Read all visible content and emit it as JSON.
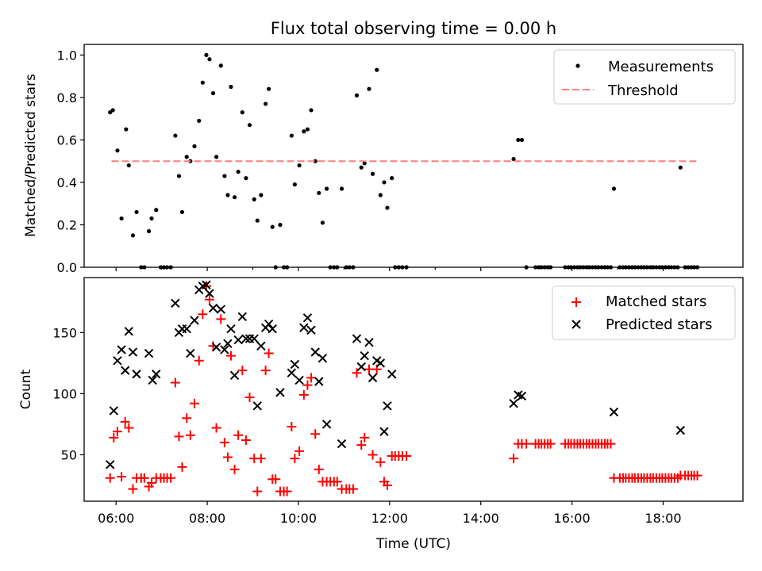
{
  "chart_data": {
    "type": "scatter",
    "title": "Flux total observing time = 0.00 h",
    "xlabel": "Time (UTC)",
    "x_ticks": [
      "06:00",
      "08:00",
      "10:00",
      "12:00",
      "14:00",
      "16:00",
      "18:00"
    ],
    "x_tick_hours": [
      6,
      8,
      10,
      12,
      14,
      16,
      18
    ],
    "xlim_hours": [
      5.3,
      19.75
    ],
    "colors": {
      "measurement": "#000000",
      "threshold": "#ff7f7f",
      "matched": "#ff0000",
      "predicted": "#000000"
    },
    "top": {
      "ylabel": "Matched/Predicted stars",
      "ylim": [
        0,
        1.05
      ],
      "y_ticks": [
        "0.0",
        "0.2",
        "0.4",
        "0.6",
        "0.8",
        "1.0"
      ],
      "legend": {
        "placement": "top-right",
        "measurements": "Measurements",
        "threshold": "Threshold"
      },
      "threshold": {
        "y": 0.5,
        "x_start": 5.9,
        "x_end": 18.75
      },
      "x_minor_ticks": [
        6,
        7,
        8,
        9,
        10,
        11,
        12,
        13,
        14,
        15,
        16,
        17,
        18
      ],
      "measurements": [
        [
          5.87,
          0.73
        ],
        [
          5.93,
          0.74
        ],
        [
          6.03,
          0.55
        ],
        [
          6.12,
          0.23
        ],
        [
          6.22,
          0.65
        ],
        [
          6.28,
          0.48
        ],
        [
          6.37,
          0.15
        ],
        [
          6.45,
          0.26
        ],
        [
          6.55,
          0.0
        ],
        [
          6.62,
          0.0
        ],
        [
          6.72,
          0.17
        ],
        [
          6.78,
          0.23
        ],
        [
          6.88,
          0.27
        ],
        [
          6.98,
          0.0
        ],
        [
          7.05,
          0.0
        ],
        [
          7.12,
          0.0
        ],
        [
          7.2,
          0.0
        ],
        [
          7.3,
          0.62
        ],
        [
          7.38,
          0.43
        ],
        [
          7.45,
          0.26
        ],
        [
          7.55,
          0.52
        ],
        [
          7.63,
          0.5
        ],
        [
          7.72,
          0.57
        ],
        [
          7.82,
          0.69
        ],
        [
          7.9,
          0.87
        ],
        [
          7.98,
          1.0
        ],
        [
          8.05,
          0.98
        ],
        [
          8.13,
          0.82
        ],
        [
          8.2,
          0.52
        ],
        [
          8.3,
          0.95
        ],
        [
          8.38,
          0.43
        ],
        [
          8.45,
          0.34
        ],
        [
          8.52,
          0.85
        ],
        [
          8.6,
          0.33
        ],
        [
          8.68,
          0.45
        ],
        [
          8.77,
          0.73
        ],
        [
          8.85,
          0.42
        ],
        [
          8.93,
          0.67
        ],
        [
          9.03,
          0.32
        ],
        [
          9.1,
          0.22
        ],
        [
          9.18,
          0.34
        ],
        [
          9.28,
          0.77
        ],
        [
          9.35,
          0.84
        ],
        [
          9.43,
          0.19
        ],
        [
          9.5,
          0.0
        ],
        [
          9.6,
          0.2
        ],
        [
          9.68,
          0.0
        ],
        [
          9.75,
          0.0
        ],
        [
          9.85,
          0.62
        ],
        [
          9.92,
          0.39
        ],
        [
          10.02,
          0.48
        ],
        [
          10.12,
          0.64
        ],
        [
          10.2,
          0.65
        ],
        [
          10.28,
          0.74
        ],
        [
          10.37,
          0.5
        ],
        [
          10.45,
          0.35
        ],
        [
          10.53,
          0.21
        ],
        [
          10.62,
          0.37
        ],
        [
          10.7,
          0.0
        ],
        [
          10.78,
          0.0
        ],
        [
          10.85,
          0.0
        ],
        [
          10.95,
          0.37
        ],
        [
          11.05,
          0.0
        ],
        [
          11.12,
          0.0
        ],
        [
          11.2,
          0.0
        ],
        [
          11.28,
          0.81
        ],
        [
          11.38,
          0.47
        ],
        [
          11.45,
          0.49
        ],
        [
          11.55,
          0.84
        ],
        [
          11.63,
          0.44
        ],
        [
          11.72,
          0.93
        ],
        [
          11.8,
          0.34
        ],
        [
          11.88,
          0.4
        ],
        [
          11.95,
          0.28
        ],
        [
          12.05,
          0.42
        ],
        [
          12.12,
          0.0
        ],
        [
          12.2,
          0.0
        ],
        [
          12.28,
          0.0
        ],
        [
          12.37,
          0.0
        ],
        [
          14.72,
          0.51
        ],
        [
          14.82,
          0.6
        ],
        [
          14.9,
          0.6
        ],
        [
          15.0,
          0.0
        ],
        [
          15.2,
          0.0
        ],
        [
          15.27,
          0.0
        ],
        [
          15.33,
          0.0
        ],
        [
          15.4,
          0.0
        ],
        [
          15.47,
          0.0
        ],
        [
          15.53,
          0.0
        ],
        [
          15.85,
          0.0
        ],
        [
          15.92,
          0.0
        ],
        [
          15.98,
          0.0
        ],
        [
          16.05,
          0.0
        ],
        [
          16.12,
          0.0
        ],
        [
          16.18,
          0.0
        ],
        [
          16.25,
          0.0
        ],
        [
          16.32,
          0.0
        ],
        [
          16.38,
          0.0
        ],
        [
          16.45,
          0.0
        ],
        [
          16.52,
          0.0
        ],
        [
          16.58,
          0.0
        ],
        [
          16.65,
          0.0
        ],
        [
          16.72,
          0.0
        ],
        [
          16.78,
          0.0
        ],
        [
          16.85,
          0.0
        ],
        [
          16.92,
          0.37
        ],
        [
          17.05,
          0.0
        ],
        [
          17.12,
          0.0
        ],
        [
          17.18,
          0.0
        ],
        [
          17.25,
          0.0
        ],
        [
          17.32,
          0.0
        ],
        [
          17.38,
          0.0
        ],
        [
          17.45,
          0.0
        ],
        [
          17.52,
          0.0
        ],
        [
          17.58,
          0.0
        ],
        [
          17.65,
          0.0
        ],
        [
          17.72,
          0.0
        ],
        [
          17.78,
          0.0
        ],
        [
          17.85,
          0.0
        ],
        [
          17.92,
          0.0
        ],
        [
          17.98,
          0.0
        ],
        [
          18.05,
          0.0
        ],
        [
          18.12,
          0.0
        ],
        [
          18.18,
          0.0
        ],
        [
          18.25,
          0.0
        ],
        [
          18.32,
          0.0
        ],
        [
          18.38,
          0.47
        ],
        [
          18.48,
          0.0
        ],
        [
          18.55,
          0.0
        ],
        [
          18.62,
          0.0
        ],
        [
          18.68,
          0.0
        ],
        [
          18.75,
          0.0
        ]
      ]
    },
    "bottom": {
      "ylabel": "Count",
      "ylim": [
        12,
        195
      ],
      "y_ticks": [
        "50",
        "100",
        "150"
      ],
      "y_tick_values": [
        50,
        100,
        150
      ],
      "legend": {
        "placement": "top-right",
        "matched": "Matched stars",
        "predicted": "Predicted stars"
      },
      "matched": [
        [
          5.87,
          31
        ],
        [
          5.95,
          64
        ],
        [
          6.03,
          69
        ],
        [
          6.12,
          32
        ],
        [
          6.2,
          77
        ],
        [
          6.28,
          72
        ],
        [
          6.37,
          22
        ],
        [
          6.45,
          31
        ],
        [
          6.55,
          31
        ],
        [
          6.62,
          31
        ],
        [
          6.72,
          24
        ],
        [
          6.78,
          27
        ],
        [
          6.88,
          31
        ],
        [
          6.98,
          31
        ],
        [
          7.05,
          31
        ],
        [
          7.12,
          31
        ],
        [
          7.2,
          31
        ],
        [
          7.3,
          109
        ],
        [
          7.38,
          65
        ],
        [
          7.45,
          40
        ],
        [
          7.55,
          80
        ],
        [
          7.63,
          66
        ],
        [
          7.72,
          92
        ],
        [
          7.82,
          127
        ],
        [
          7.9,
          165
        ],
        [
          7.98,
          188
        ],
        [
          8.05,
          177
        ],
        [
          8.13,
          139
        ],
        [
          8.2,
          72
        ],
        [
          8.3,
          161
        ],
        [
          8.38,
          60
        ],
        [
          8.45,
          48
        ],
        [
          8.52,
          131
        ],
        [
          8.6,
          38
        ],
        [
          8.68,
          66
        ],
        [
          8.77,
          119
        ],
        [
          8.85,
          62
        ],
        [
          8.93,
          97
        ],
        [
          9.03,
          47
        ],
        [
          9.1,
          20
        ],
        [
          9.18,
          47
        ],
        [
          9.28,
          119
        ],
        [
          9.35,
          133
        ],
        [
          9.43,
          30
        ],
        [
          9.5,
          30
        ],
        [
          9.6,
          20
        ],
        [
          9.68,
          20
        ],
        [
          9.75,
          20
        ],
        [
          9.85,
          73
        ],
        [
          9.92,
          47
        ],
        [
          10.02,
          53
        ],
        [
          10.12,
          99
        ],
        [
          10.2,
          107
        ],
        [
          10.28,
          113
        ],
        [
          10.37,
          67
        ],
        [
          10.45,
          38
        ],
        [
          10.53,
          28
        ],
        [
          10.62,
          28
        ],
        [
          10.7,
          28
        ],
        [
          10.78,
          28
        ],
        [
          10.85,
          28
        ],
        [
          10.95,
          22
        ],
        [
          11.05,
          22
        ],
        [
          11.12,
          22
        ],
        [
          11.2,
          22
        ],
        [
          11.28,
          117
        ],
        [
          11.38,
          58
        ],
        [
          11.45,
          64
        ],
        [
          11.55,
          120
        ],
        [
          11.63,
          50
        ],
        [
          11.72,
          120
        ],
        [
          11.8,
          44
        ],
        [
          11.88,
          28
        ],
        [
          11.95,
          25
        ],
        [
          12.05,
          49
        ],
        [
          12.12,
          49
        ],
        [
          12.2,
          49
        ],
        [
          12.28,
          49
        ],
        [
          12.37,
          49
        ],
        [
          14.72,
          47
        ],
        [
          14.82,
          59
        ],
        [
          14.9,
          59
        ],
        [
          15.0,
          59
        ],
        [
          15.2,
          59
        ],
        [
          15.27,
          59
        ],
        [
          15.33,
          59
        ],
        [
          15.4,
          59
        ],
        [
          15.47,
          59
        ],
        [
          15.53,
          59
        ],
        [
          15.85,
          59
        ],
        [
          15.92,
          59
        ],
        [
          15.98,
          59
        ],
        [
          16.05,
          59
        ],
        [
          16.12,
          59
        ],
        [
          16.18,
          59
        ],
        [
          16.25,
          59
        ],
        [
          16.32,
          59
        ],
        [
          16.38,
          59
        ],
        [
          16.45,
          59
        ],
        [
          16.52,
          59
        ],
        [
          16.58,
          59
        ],
        [
          16.65,
          59
        ],
        [
          16.72,
          59
        ],
        [
          16.78,
          59
        ],
        [
          16.85,
          59
        ],
        [
          16.92,
          31
        ],
        [
          17.05,
          31
        ],
        [
          17.12,
          31
        ],
        [
          17.18,
          31
        ],
        [
          17.25,
          31
        ],
        [
          17.32,
          31
        ],
        [
          17.38,
          31
        ],
        [
          17.45,
          31
        ],
        [
          17.52,
          31
        ],
        [
          17.58,
          31
        ],
        [
          17.65,
          31
        ],
        [
          17.72,
          31
        ],
        [
          17.78,
          31
        ],
        [
          17.85,
          31
        ],
        [
          17.92,
          31
        ],
        [
          17.98,
          31
        ],
        [
          18.05,
          31
        ],
        [
          18.12,
          31
        ],
        [
          18.18,
          31
        ],
        [
          18.25,
          31
        ],
        [
          18.32,
          31
        ],
        [
          18.38,
          33
        ],
        [
          18.48,
          33
        ],
        [
          18.55,
          33
        ],
        [
          18.62,
          33
        ],
        [
          18.68,
          33
        ],
        [
          18.75,
          33
        ]
      ],
      "predicted": [
        [
          5.87,
          42
        ],
        [
          5.95,
          86
        ],
        [
          6.03,
          127
        ],
        [
          6.12,
          136
        ],
        [
          6.2,
          119
        ],
        [
          6.28,
          151
        ],
        [
          6.37,
          134
        ],
        [
          6.45,
          116
        ],
        [
          6.72,
          133
        ],
        [
          6.8,
          111
        ],
        [
          6.88,
          116
        ],
        [
          7.3,
          174
        ],
        [
          7.38,
          150
        ],
        [
          7.45,
          153
        ],
        [
          7.55,
          153
        ],
        [
          7.63,
          133
        ],
        [
          7.72,
          160
        ],
        [
          7.82,
          185
        ],
        [
          7.9,
          188
        ],
        [
          7.98,
          189
        ],
        [
          8.05,
          182
        ],
        [
          8.13,
          170
        ],
        [
          8.2,
          138
        ],
        [
          8.3,
          169
        ],
        [
          8.38,
          136
        ],
        [
          8.45,
          141
        ],
        [
          8.52,
          153
        ],
        [
          8.6,
          115
        ],
        [
          8.68,
          144
        ],
        [
          8.77,
          163
        ],
        [
          8.85,
          145
        ],
        [
          8.93,
          145
        ],
        [
          9.03,
          145
        ],
        [
          9.1,
          90
        ],
        [
          9.18,
          139
        ],
        [
          9.28,
          154
        ],
        [
          9.35,
          157
        ],
        [
          9.43,
          153
        ],
        [
          9.6,
          101
        ],
        [
          9.85,
          117
        ],
        [
          9.92,
          124
        ],
        [
          10.02,
          111
        ],
        [
          10.12,
          154
        ],
        [
          10.2,
          162
        ],
        [
          10.28,
          152
        ],
        [
          10.37,
          134
        ],
        [
          10.45,
          110
        ],
        [
          10.53,
          129
        ],
        [
          10.62,
          75
        ],
        [
          10.95,
          59
        ],
        [
          11.28,
          145
        ],
        [
          11.38,
          122
        ],
        [
          11.45,
          131
        ],
        [
          11.55,
          142
        ],
        [
          11.63,
          113
        ],
        [
          11.72,
          127
        ],
        [
          11.8,
          125
        ],
        [
          11.88,
          69
        ],
        [
          11.95,
          90
        ],
        [
          12.05,
          116
        ],
        [
          14.72,
          92
        ],
        [
          14.82,
          99
        ],
        [
          14.9,
          98
        ],
        [
          16.92,
          85
        ],
        [
          18.38,
          70
        ]
      ]
    }
  }
}
